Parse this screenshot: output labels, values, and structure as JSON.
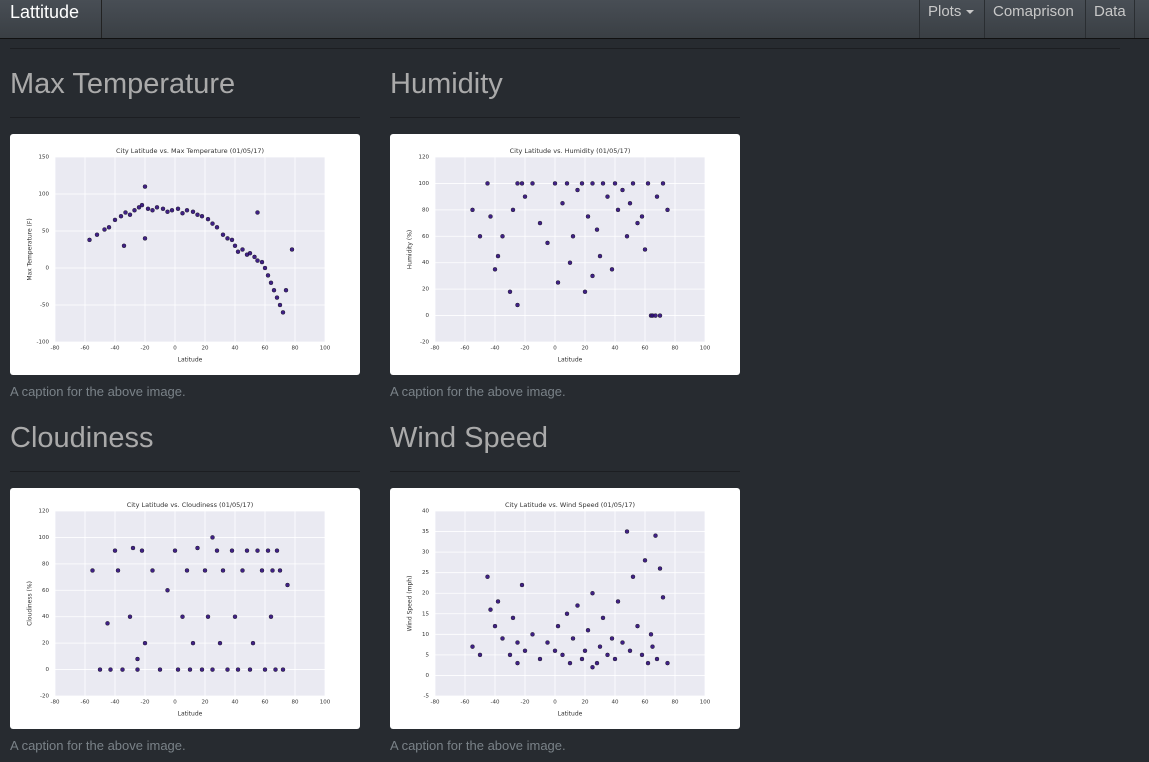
{
  "navbar": {
    "brand": "Lattitude",
    "items": [
      "Plots",
      "Comaprison",
      "Data"
    ]
  },
  "sections": [
    {
      "heading": "Max Temperature",
      "caption": "A caption for the above image.",
      "chart": {
        "type": "scatter",
        "title": "City Latitude vs. Max Temperature (01/05/17)",
        "xlabel": "Latitude",
        "ylabel": "Max Temperature (F)",
        "color": "#2e0b7a",
        "xlim": [
          -80,
          100
        ],
        "xticks": [
          -80,
          -60,
          -40,
          -20,
          0,
          20,
          40,
          60,
          80,
          100
        ],
        "ylim": [
          -100,
          150
        ],
        "yticks": [
          -100,
          -50,
          0,
          50,
          100,
          150
        ],
        "x": [
          -57,
          -52,
          -47,
          -44,
          -40,
          -36,
          -33,
          -30,
          -27,
          -24,
          -22,
          -20,
          -18,
          -15,
          -12,
          -8,
          -5,
          -2,
          2,
          5,
          8,
          12,
          15,
          18,
          22,
          25,
          28,
          32,
          35,
          38,
          40,
          42,
          45,
          48,
          50,
          53,
          55,
          58,
          60,
          62,
          64,
          66,
          68,
          70,
          72,
          74,
          78,
          -34,
          -20,
          55
        ],
        "y": [
          38,
          45,
          52,
          55,
          65,
          70,
          75,
          72,
          78,
          82,
          85,
          110,
          80,
          78,
          82,
          80,
          76,
          78,
          80,
          74,
          78,
          76,
          72,
          70,
          66,
          60,
          55,
          45,
          40,
          38,
          30,
          22,
          25,
          18,
          20,
          15,
          10,
          8,
          0,
          -10,
          -20,
          -30,
          -40,
          -50,
          -60,
          -30,
          25,
          30,
          40,
          75
        ]
      }
    },
    {
      "heading": "Humidity",
      "caption": "A caption for the above image.",
      "chart": {
        "type": "scatter",
        "title": "City Latitude vs. Humidity (01/05/17)",
        "xlabel": "Latitude",
        "ylabel": "Humidity (%)",
        "color": "#2e0b7a",
        "xlim": [
          -80,
          100
        ],
        "xticks": [
          -80,
          -60,
          -40,
          -20,
          0,
          20,
          40,
          60,
          80,
          100
        ],
        "ylim": [
          -20,
          120
        ],
        "yticks": [
          -20,
          0,
          20,
          40,
          60,
          80,
          100,
          120
        ],
        "x": [
          -55,
          -50,
          -45,
          -43,
          -40,
          -38,
          -35,
          -30,
          -28,
          -25,
          -22,
          -20,
          -15,
          -10,
          -5,
          0,
          2,
          5,
          8,
          10,
          12,
          15,
          18,
          20,
          22,
          25,
          28,
          30,
          32,
          35,
          38,
          40,
          42,
          45,
          48,
          50,
          52,
          55,
          58,
          60,
          62,
          64,
          65,
          67,
          68,
          70,
          72,
          75,
          -25,
          25
        ],
        "y": [
          80,
          60,
          100,
          75,
          35,
          45,
          60,
          18,
          80,
          8,
          100,
          90,
          100,
          70,
          55,
          100,
          25,
          85,
          100,
          40,
          60,
          95,
          100,
          18,
          75,
          100,
          65,
          45,
          100,
          90,
          35,
          100,
          80,
          95,
          60,
          85,
          100,
          70,
          75,
          50,
          100,
          0,
          0,
          0,
          90,
          0,
          100,
          80,
          100,
          30
        ]
      }
    },
    {
      "heading": "Cloudiness",
      "caption": "A caption for the above image.",
      "chart": {
        "type": "scatter",
        "title": "City Latitude vs. Cloudiness (01/05/17)",
        "xlabel": "Latitude",
        "ylabel": "Cloudiness (%)",
        "color": "#2e0b7a",
        "xlim": [
          -80,
          100
        ],
        "xticks": [
          -80,
          -60,
          -40,
          -20,
          0,
          20,
          40,
          60,
          80,
          100
        ],
        "ylim": [
          -20,
          120
        ],
        "yticks": [
          -20,
          0,
          20,
          40,
          60,
          80,
          100,
          120
        ],
        "x": [
          -55,
          -50,
          -45,
          -43,
          -40,
          -38,
          -35,
          -30,
          -28,
          -25,
          -22,
          -20,
          -15,
          -10,
          -5,
          0,
          2,
          5,
          8,
          10,
          12,
          15,
          18,
          20,
          22,
          25,
          28,
          30,
          32,
          35,
          38,
          40,
          42,
          45,
          48,
          50,
          52,
          55,
          58,
          60,
          62,
          64,
          65,
          67,
          68,
          70,
          72,
          75,
          -25,
          25
        ],
        "y": [
          75,
          0,
          35,
          0,
          90,
          75,
          0,
          40,
          92,
          0,
          90,
          20,
          75,
          0,
          60,
          90,
          0,
          40,
          75,
          0,
          20,
          92,
          0,
          75,
          40,
          0,
          90,
          20,
          75,
          0,
          90,
          40,
          0,
          75,
          90,
          0,
          20,
          90,
          75,
          0,
          90,
          40,
          75,
          0,
          90,
          75,
          0,
          64,
          8,
          100
        ]
      }
    },
    {
      "heading": "Wind Speed",
      "caption": "A caption for the above image.",
      "chart": {
        "type": "scatter",
        "title": "City Latitude vs. Wind Speed (01/05/17)",
        "xlabel": "Latitude",
        "ylabel": "Wind Speed (mph)",
        "color": "#2e0b7a",
        "xlim": [
          -80,
          100
        ],
        "xticks": [
          -80,
          -60,
          -40,
          -20,
          0,
          20,
          40,
          60,
          80,
          100
        ],
        "ylim": [
          -5,
          40
        ],
        "yticks": [
          -5,
          0,
          5,
          10,
          15,
          20,
          25,
          30,
          35,
          40
        ],
        "x": [
          -55,
          -50,
          -45,
          -43,
          -40,
          -38,
          -35,
          -30,
          -28,
          -25,
          -22,
          -20,
          -15,
          -10,
          -5,
          0,
          2,
          5,
          8,
          10,
          12,
          15,
          18,
          20,
          22,
          25,
          28,
          30,
          32,
          35,
          38,
          40,
          42,
          45,
          48,
          50,
          52,
          55,
          58,
          60,
          62,
          64,
          65,
          67,
          68,
          70,
          72,
          75,
          -25,
          25
        ],
        "y": [
          7,
          5,
          24,
          16,
          12,
          18,
          9,
          5,
          14,
          3,
          22,
          6,
          10,
          4,
          8,
          6,
          12,
          5,
          15,
          3,
          9,
          17,
          4,
          6,
          11,
          20,
          3,
          7,
          14,
          5,
          9,
          4,
          18,
          8,
          35,
          6,
          24,
          12,
          5,
          28,
          3,
          10,
          7,
          34,
          4,
          26,
          19,
          3,
          8,
          2
        ]
      }
    }
  ]
}
